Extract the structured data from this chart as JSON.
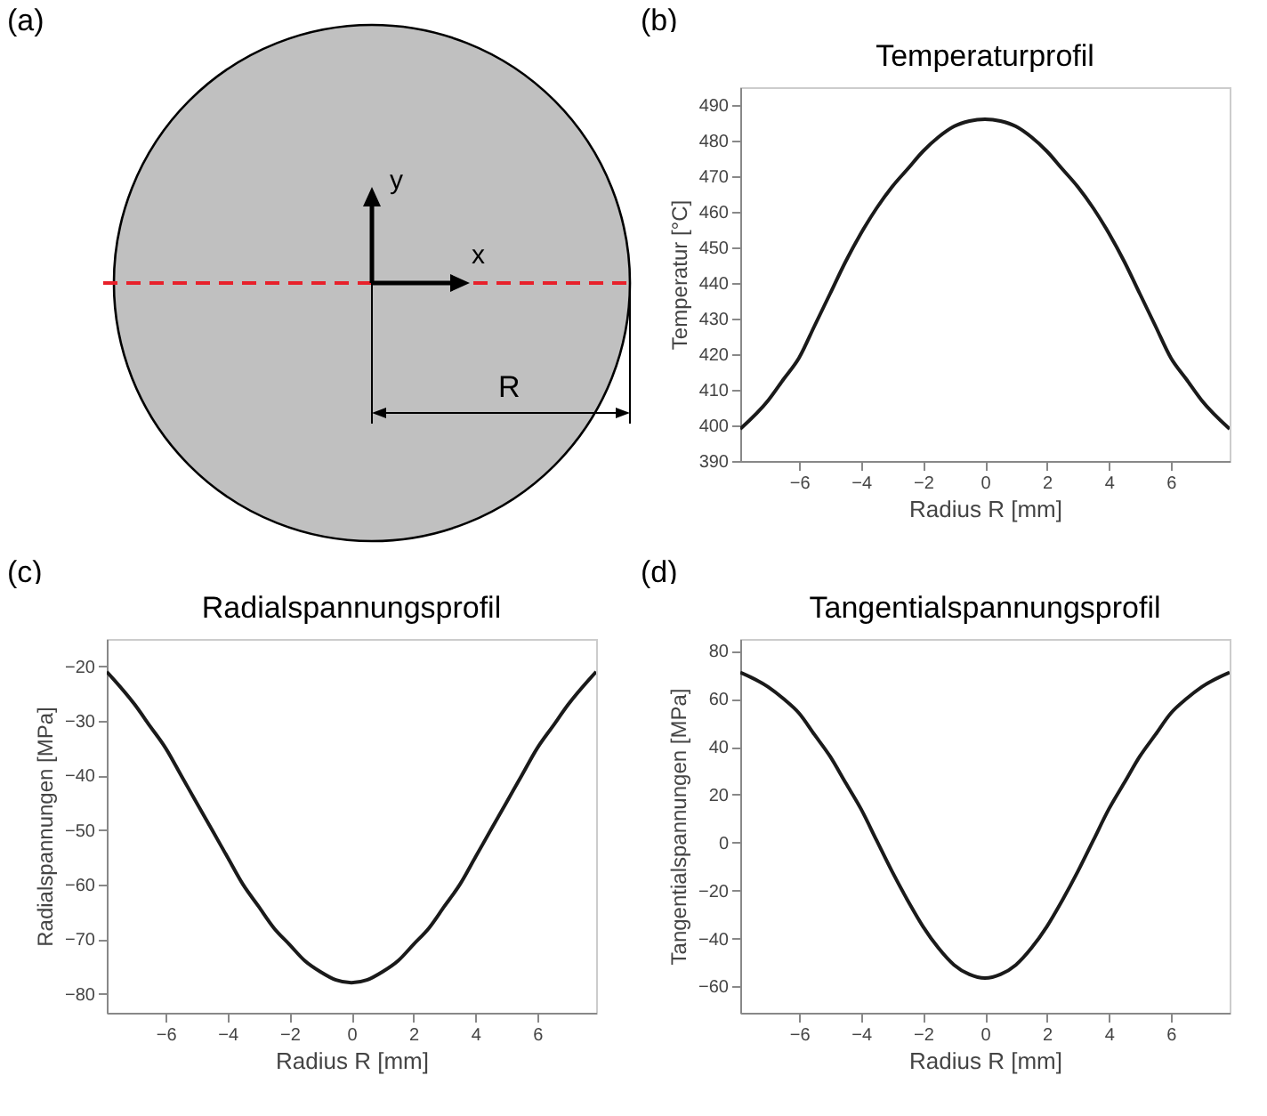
{
  "chart_data": [
    {
      "type": "other",
      "annotations": [
        "(a)",
        "y",
        "x",
        "R"
      ]
    },
    {
      "type": "line",
      "title": "Temperaturprofil",
      "xlabel": "Radius R [mm]",
      "ylabel": "Temperatur [°C]",
      "annotations": [
        "(b)"
      ],
      "x": [
        -7.9,
        -7,
        -6.5,
        -6,
        -5.5,
        -5,
        -4.5,
        -4,
        -3.5,
        -3,
        -2.5,
        -2,
        -1.5,
        -1,
        -0.5,
        0,
        0.5,
        1,
        1.5,
        2,
        2.5,
        3,
        3.5,
        4,
        4.5,
        5,
        5.5,
        6,
        6.5,
        7,
        7.9
      ],
      "series": [
        {
          "color": "#1a1a1a",
          "values": [
            399,
            407,
            413,
            419,
            428,
            437,
            446,
            454,
            461,
            467,
            472,
            477,
            481,
            484,
            485.5,
            486,
            485.5,
            484,
            481,
            477,
            472,
            467,
            461,
            454,
            446,
            437,
            428,
            419,
            413,
            407,
            399
          ]
        }
      ],
      "xlim": [
        -7.9,
        7.9
      ],
      "xticks": [
        -6,
        -4,
        -2,
        0,
        2,
        4,
        6
      ],
      "ylim": [
        390,
        495
      ],
      "yticks": [
        390,
        400,
        410,
        420,
        430,
        440,
        450,
        460,
        470,
        480,
        490
      ]
    },
    {
      "type": "line",
      "title": "Radialspannungsprofil",
      "xlabel": "Radius R [mm]",
      "ylabel": "Radialspannungen [MPa]",
      "annotations": [
        "(c)"
      ],
      "x": [
        -7.9,
        -7,
        -6.5,
        -6,
        -5.5,
        -5,
        -4.5,
        -4,
        -3.5,
        -3,
        -2.5,
        -2,
        -1.5,
        -1,
        -0.5,
        0,
        0.5,
        1,
        1.5,
        2,
        2.5,
        3,
        3.5,
        4,
        4.5,
        5,
        5.5,
        6,
        6.5,
        7,
        7.9
      ],
      "series": [
        {
          "color": "#1a1a1a",
          "values": [
            -21,
            -27,
            -31,
            -35,
            -40,
            -45,
            -50,
            -55,
            -60,
            -64,
            -68,
            -71,
            -74,
            -76,
            -77.5,
            -78,
            -77.5,
            -76,
            -74,
            -71,
            -68,
            -64,
            -60,
            -55,
            -50,
            -45,
            -40,
            -35,
            -31,
            -27,
            -21
          ]
        }
      ],
      "xlim": [
        -7.9,
        7.9
      ],
      "xticks": [
        -6,
        -4,
        -2,
        0,
        2,
        4,
        6
      ],
      "ylim": [
        -83.5,
        -15
      ],
      "yticks": [
        -80,
        -70,
        -60,
        -50,
        -40,
        -30,
        -20
      ]
    },
    {
      "type": "line",
      "title": "Tangentialspannungsprofil",
      "xlabel": "Radius R [mm]",
      "ylabel": "Tangentialspannungen [MPa]",
      "annotations": [
        "(d)"
      ],
      "x": [
        -7.9,
        -7,
        -6.5,
        -6,
        -5.5,
        -5,
        -4.5,
        -4,
        -3.5,
        -3,
        -2.5,
        -2,
        -1.5,
        -1,
        -0.5,
        0,
        0.5,
        1,
        1.5,
        2,
        2.5,
        3,
        3.5,
        4,
        4.5,
        5,
        5.5,
        6,
        6.5,
        7,
        7.9
      ],
      "series": [
        {
          "color": "#1a1a1a",
          "values": [
            71,
            65,
            60,
            54,
            45,
            36,
            25,
            14,
            1,
            -12,
            -24,
            -35,
            -44,
            -51,
            -55,
            -56.5,
            -55,
            -51,
            -44,
            -35,
            -24,
            -12,
            1,
            14,
            25,
            36,
            45,
            54,
            60,
            65,
            71
          ]
        }
      ],
      "xlim": [
        -7.9,
        7.9
      ],
      "xticks": [
        -6,
        -4,
        -2,
        0,
        2,
        4,
        6
      ],
      "ylim": [
        -71,
        85
      ],
      "yticks": [
        -60,
        -40,
        -20,
        0,
        20,
        40,
        60,
        80
      ]
    }
  ]
}
